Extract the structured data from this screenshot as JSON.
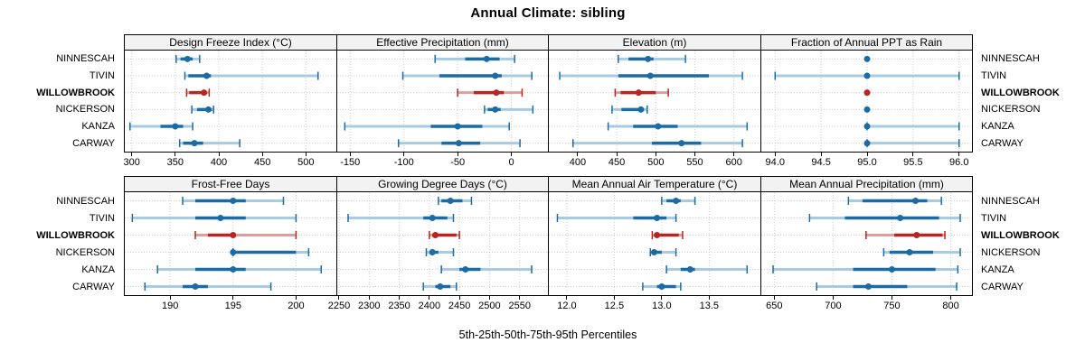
{
  "title": "Annual Climate: sibling",
  "footer": "5th-25th-50th-75th-95th Percentiles",
  "sites": [
    {
      "name": "NINNESCAH",
      "highlight": false
    },
    {
      "name": "TIVIN",
      "highlight": false
    },
    {
      "name": "WILLOWBROOK",
      "highlight": true
    },
    {
      "name": "NICKERSON",
      "highlight": false
    },
    {
      "name": "KANZA",
      "highlight": false
    },
    {
      "name": "CARWAY",
      "highlight": false
    }
  ],
  "colors": {
    "blue": "#1b6ba5",
    "blue_light": "#a8cbe2",
    "red": "#b82421",
    "red_light": "#dc9f9b",
    "grid": "#cccccc",
    "header_bg": "#f2f2f2",
    "border": "#000000"
  },
  "chart_data": [
    {
      "type": "dotplot-percentiles",
      "title": "Design Freeze Index (°C)",
      "row": 0,
      "col": 0,
      "xlim": [
        292,
        535
      ],
      "tick_values": [
        300,
        350,
        400,
        450,
        500
      ],
      "tick_labels": [
        "300",
        "350",
        "400",
        "450",
        "500"
      ],
      "percentile_levels": [
        5,
        25,
        50,
        75,
        95
      ],
      "series": [
        {
          "site": "NINNESCAH",
          "p": [
            351,
            356,
            364,
            370,
            378
          ]
        },
        {
          "site": "TIVIN",
          "p": [
            361,
            365,
            386,
            391,
            514
          ]
        },
        {
          "site": "WILLOWBROOK",
          "p": [
            363,
            366,
            383,
            386,
            389
          ]
        },
        {
          "site": "NICKERSON",
          "p": [
            369,
            375,
            388,
            392,
            394
          ]
        },
        {
          "site": "KANZA",
          "p": [
            298,
            333,
            350,
            359,
            370
          ]
        },
        {
          "site": "CARWAY",
          "p": [
            355,
            359,
            372,
            382,
            424
          ]
        }
      ]
    },
    {
      "type": "dotplot-percentiles",
      "title": "Effective Precipitation (mm)",
      "row": 0,
      "col": 1,
      "xlim": [
        -162,
        34
      ],
      "tick_values": [
        -150,
        -100,
        -50,
        0
      ],
      "tick_labels": [
        "-150",
        "-100",
        "-50",
        "0"
      ],
      "percentile_levels": [
        5,
        25,
        50,
        75,
        95
      ],
      "series": [
        {
          "site": "NINNESCAH",
          "p": [
            -71,
            -43,
            -23,
            -11,
            3
          ]
        },
        {
          "site": "TIVIN",
          "p": [
            -101,
            -67,
            -15,
            -9,
            19
          ]
        },
        {
          "site": "WILLOWBROOK",
          "p": [
            -50,
            -35,
            -14,
            -7,
            10
          ]
        },
        {
          "site": "NICKERSON",
          "p": [
            -25,
            -22,
            -15,
            -10,
            20
          ]
        },
        {
          "site": "KANZA",
          "p": [
            -155,
            -75,
            -50,
            -27,
            -2
          ]
        },
        {
          "site": "CARWAY",
          "p": [
            -105,
            -65,
            -49,
            -29,
            8
          ]
        }
      ]
    },
    {
      "type": "dotplot-percentiles",
      "title": "Elevation (m)",
      "row": 0,
      "col": 2,
      "xlim": [
        363,
        634
      ],
      "tick_values": [
        400,
        450,
        500,
        550,
        600
      ],
      "tick_labels": [
        "400",
        "450",
        "500",
        "550",
        "600"
      ],
      "percentile_levels": [
        5,
        25,
        50,
        75,
        95
      ],
      "series": [
        {
          "site": "NINNESCAH",
          "p": [
            452,
            465,
            490,
            497,
            538
          ]
        },
        {
          "site": "TIVIN",
          "p": [
            377,
            452,
            493,
            568,
            611
          ]
        },
        {
          "site": "WILLOWBROOK",
          "p": [
            448,
            455,
            478,
            500,
            516
          ]
        },
        {
          "site": "NICKERSON",
          "p": [
            444,
            456,
            481,
            484,
            489
          ]
        },
        {
          "site": "KANZA",
          "p": [
            439,
            471,
            503,
            528,
            617
          ]
        },
        {
          "site": "CARWAY",
          "p": [
            394,
            495,
            533,
            558,
            611
          ]
        }
      ]
    },
    {
      "type": "dotplot-percentiles",
      "title": "Fraction of Annual PPT as Rain",
      "row": 0,
      "col": 3,
      "xlim": [
        93.85,
        96.14
      ],
      "tick_values": [
        94.0,
        94.5,
        95.0,
        95.5,
        96.0
      ],
      "tick_labels": [
        "94.0",
        "94.5",
        "95.0",
        "95.5",
        "96.0"
      ],
      "percentile_levels": [
        5,
        25,
        50,
        75,
        95
      ],
      "series": [
        {
          "site": "NINNESCAH",
          "p": [
            95,
            95,
            95,
            95,
            95
          ]
        },
        {
          "site": "TIVIN",
          "p": [
            94,
            95,
            95,
            95,
            96
          ]
        },
        {
          "site": "WILLOWBROOK",
          "p": [
            95,
            95,
            95,
            95,
            95
          ]
        },
        {
          "site": "NICKERSON",
          "p": [
            95,
            95,
            95,
            95,
            95
          ]
        },
        {
          "site": "KANZA",
          "p": [
            95,
            95,
            95,
            95,
            96
          ]
        },
        {
          "site": "CARWAY",
          "p": [
            95,
            95,
            95,
            95,
            96
          ]
        }
      ]
    },
    {
      "type": "dotplot-percentiles",
      "title": "Frost-Free Days",
      "row": 1,
      "col": 0,
      "xlim": [
        186.4,
        203.2
      ],
      "tick_values": [
        190,
        195,
        200
      ],
      "tick_labels": [
        "190",
        "195",
        "200"
      ],
      "percentile_levels": [
        5,
        25,
        50,
        75,
        95
      ],
      "series": [
        {
          "site": "NINNESCAH",
          "p": [
            191,
            192,
            195,
            196,
            199
          ]
        },
        {
          "site": "TIVIN",
          "p": [
            187,
            192,
            194,
            196,
            200
          ]
        },
        {
          "site": "WILLOWBROOK",
          "p": [
            192,
            193,
            195,
            195,
            200
          ]
        },
        {
          "site": "NICKERSON",
          "p": [
            195,
            195,
            195,
            200,
            201
          ]
        },
        {
          "site": "KANZA",
          "p": [
            189,
            192,
            195,
            196,
            202
          ]
        },
        {
          "site": "CARWAY",
          "p": [
            188,
            191,
            192,
            193,
            198
          ]
        }
      ]
    },
    {
      "type": "dotplot-percentiles",
      "title": "Growing Degree Days (°C)",
      "row": 1,
      "col": 1,
      "xlim": [
        2247,
        2597
      ],
      "tick_values": [
        2250,
        2300,
        2350,
        2400,
        2450,
        2500,
        2550
      ],
      "tick_labels": [
        "2250",
        "2300",
        "2350",
        "2400",
        "2450",
        "2500",
        "2550"
      ],
      "percentile_levels": [
        5,
        25,
        50,
        75,
        95
      ],
      "series": [
        {
          "site": "NINNESCAH",
          "p": [
            2415,
            2420,
            2435,
            2455,
            2470
          ]
        },
        {
          "site": "TIVIN",
          "p": [
            2265,
            2390,
            2405,
            2430,
            2440
          ]
        },
        {
          "site": "WILLOWBROOK",
          "p": [
            2400,
            2405,
            2410,
            2445,
            2450
          ]
        },
        {
          "site": "NICKERSON",
          "p": [
            2395,
            2400,
            2405,
            2415,
            2440
          ]
        },
        {
          "site": "KANZA",
          "p": [
            2420,
            2450,
            2460,
            2485,
            2570
          ]
        },
        {
          "site": "CARWAY",
          "p": [
            2390,
            2410,
            2418,
            2435,
            2445
          ]
        }
      ]
    },
    {
      "type": "dotplot-percentiles",
      "title": "Mean Annual Air Temperature (°C)",
      "row": 1,
      "col": 2,
      "xlim": [
        11.81,
        14.04
      ],
      "tick_values": [
        12.0,
        12.5,
        13.0,
        13.5
      ],
      "tick_labels": [
        "12.0",
        "12.5",
        "13.0",
        "13.5"
      ],
      "percentile_levels": [
        5,
        25,
        50,
        75,
        95
      ],
      "series": [
        {
          "site": "NINNESCAH",
          "p": [
            13.0,
            13.05,
            13.15,
            13.2,
            13.35
          ]
        },
        {
          "site": "TIVIN",
          "p": [
            11.9,
            12.7,
            12.95,
            13.05,
            13.15
          ]
        },
        {
          "site": "WILLOWBROOK",
          "p": [
            12.9,
            12.92,
            12.95,
            13.18,
            13.22
          ]
        },
        {
          "site": "NICKERSON",
          "p": [
            12.88,
            12.9,
            12.92,
            13.0,
            13.15
          ]
        },
        {
          "site": "KANZA",
          "p": [
            13.05,
            13.2,
            13.3,
            13.35,
            13.9
          ]
        },
        {
          "site": "CARWAY",
          "p": [
            12.8,
            12.95,
            13.0,
            13.15,
            13.2
          ]
        }
      ]
    },
    {
      "type": "dotplot-percentiles",
      "title": "Mean Annual Precipitation (mm)",
      "row": 1,
      "col": 3,
      "xlim": [
        639,
        818
      ],
      "tick_values": [
        650,
        700,
        750,
        800
      ],
      "tick_labels": [
        "650",
        "700",
        "750",
        "800"
      ],
      "percentile_levels": [
        5,
        25,
        50,
        75,
        95
      ],
      "series": [
        {
          "site": "NINNESCAH",
          "p": [
            713,
            725,
            770,
            780,
            792
          ]
        },
        {
          "site": "TIVIN",
          "p": [
            680,
            710,
            757,
            790,
            808
          ]
        },
        {
          "site": "WILLOWBROOK",
          "p": [
            728,
            752,
            771,
            793,
            795
          ]
        },
        {
          "site": "NICKERSON",
          "p": [
            743,
            748,
            765,
            785,
            808
          ]
        },
        {
          "site": "KANZA",
          "p": [
            649,
            717,
            750,
            787,
            806
          ]
        },
        {
          "site": "CARWAY",
          "p": [
            686,
            717,
            730,
            763,
            805
          ]
        }
      ]
    }
  ]
}
